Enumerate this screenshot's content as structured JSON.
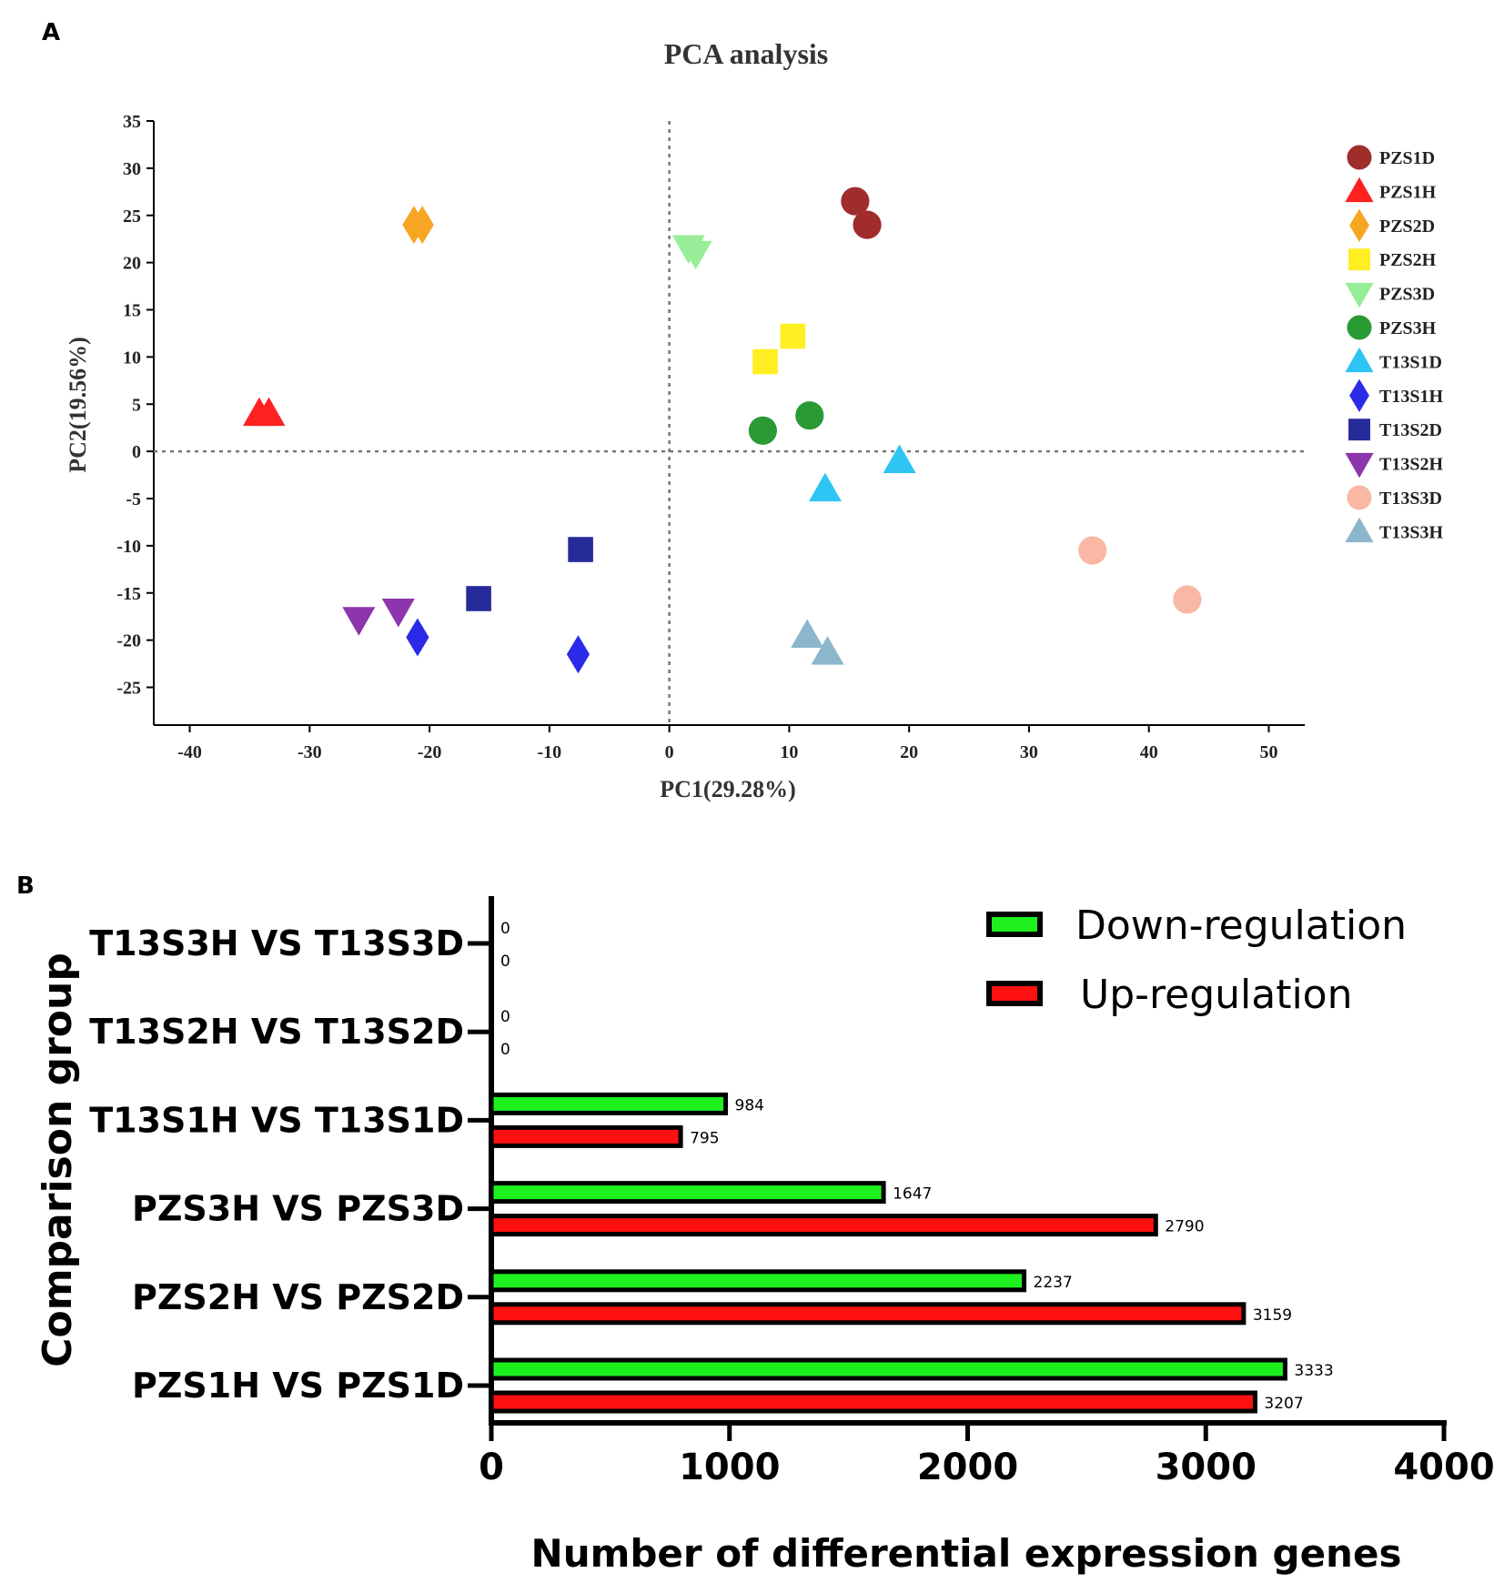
{
  "panel_labels": {
    "a": "A",
    "b": "B"
  },
  "chart_data": [
    {
      "type": "scatter",
      "title": "PCA analysis",
      "xlabel": "PC1(29.28%)",
      "ylabel": "PC2(19.56%)",
      "xlim": [
        -43,
        53
      ],
      "ylim": [
        -29,
        35
      ],
      "xticks": [
        -40,
        -30,
        -20,
        -10,
        0,
        10,
        20,
        30,
        40,
        50
      ],
      "yticks": [
        35,
        30,
        25,
        20,
        15,
        10,
        5,
        0,
        -5,
        -10,
        -15,
        -20,
        -25
      ],
      "reference_lines": {
        "x": 0,
        "y": 0
      },
      "legend_position": "right",
      "series": [
        {
          "name": "PZS1D",
          "marker": "circle",
          "color": "#a02c2c",
          "points": [
            [
              15.5,
              26.5
            ],
            [
              16.5,
              24.0
            ]
          ]
        },
        {
          "name": "PZS1H",
          "marker": "triangle-up",
          "color": "#ff2020",
          "points": [
            [
              -34.2,
              4.0
            ],
            [
              -33.4,
              4.0
            ]
          ]
        },
        {
          "name": "PZS2D",
          "marker": "diamond",
          "color": "#f6a623",
          "points": [
            [
              -21.3,
              24.0
            ],
            [
              -20.6,
              24.0
            ]
          ]
        },
        {
          "name": "PZS2H",
          "marker": "square",
          "color": "#ffee22",
          "points": [
            [
              8.0,
              9.5
            ],
            [
              10.3,
              12.2
            ]
          ]
        },
        {
          "name": "PZS3D",
          "marker": "triangle-down",
          "color": "#98ee98",
          "points": [
            [
              1.6,
              21.6
            ],
            [
              2.2,
              21.0
            ]
          ]
        },
        {
          "name": "PZS3H",
          "marker": "circle",
          "color": "#2a9a35",
          "points": [
            [
              7.8,
              2.2
            ],
            [
              11.7,
              3.8
            ]
          ]
        },
        {
          "name": "T13S1D",
          "marker": "triangle-up",
          "color": "#2ec4f4",
          "points": [
            [
              19.2,
              -1.0
            ],
            [
              13.0,
              -4.0
            ]
          ]
        },
        {
          "name": "T13S1H",
          "marker": "diamond",
          "color": "#2a2ae8",
          "points": [
            [
              -21.0,
              -19.7
            ],
            [
              -7.6,
              -21.5
            ]
          ]
        },
        {
          "name": "T13S2D",
          "marker": "square",
          "color": "#262b9a",
          "points": [
            [
              -7.4,
              -10.4
            ],
            [
              -15.9,
              -15.6
            ]
          ]
        },
        {
          "name": "T13S2H",
          "marker": "triangle-down",
          "color": "#8d35ad",
          "points": [
            [
              -25.9,
              -17.8
            ],
            [
              -22.6,
              -16.9
            ]
          ]
        },
        {
          "name": "T13S3D",
          "marker": "circle",
          "color": "#f8b8a4",
          "points": [
            [
              35.3,
              -10.5
            ],
            [
              43.2,
              -15.7
            ]
          ]
        },
        {
          "name": "T13S3H",
          "marker": "triangle-up",
          "color": "#8cb6cc",
          "points": [
            [
              11.5,
              -19.5
            ],
            [
              13.2,
              -21.3
            ]
          ]
        }
      ]
    },
    {
      "type": "bar",
      "orientation": "horizontal",
      "xlabel": "Number of differential expression genes",
      "ylabel": "Comparison group",
      "xlim": [
        0,
        4000
      ],
      "xticks": [
        0,
        1000,
        2000,
        3000,
        4000
      ],
      "legend_position": "top-right",
      "categories": [
        "T13S3H VS T13S3D",
        "T13S2H VS T13S2D",
        "T13S1H VS T13S1D",
        "PZS3H VS PZS3D",
        "PZS2H VS PZS2D",
        "PZS1H VS PZS1D"
      ],
      "series": [
        {
          "name": "Down-regulation",
          "color": "#1ef01e",
          "values": [
            0,
            0,
            984,
            1647,
            2237,
            3333
          ]
        },
        {
          "name": "Up-regulation",
          "color": "#ff1010",
          "values": [
            0,
            0,
            795,
            2790,
            3159,
            3207
          ]
        }
      ]
    }
  ]
}
